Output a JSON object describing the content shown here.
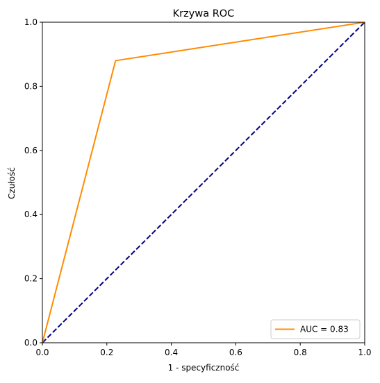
{
  "chart_data": {
    "type": "line",
    "title": "Krzywa ROC",
    "xlabel": "1 - specyficzność",
    "ylabel": "Czułość",
    "xlim": [
      0.0,
      1.0
    ],
    "ylim": [
      0.0,
      1.0
    ],
    "xticks": [
      0.0,
      0.2,
      0.4,
      0.6,
      0.8,
      1.0
    ],
    "yticks": [
      0.0,
      0.2,
      0.4,
      0.6,
      0.8,
      1.0
    ],
    "xtick_labels": [
      "0.0",
      "0.2",
      "0.4",
      "0.6",
      "0.8",
      "1.0"
    ],
    "ytick_labels": [
      "0.0",
      "0.2",
      "0.4",
      "0.6",
      "0.8",
      "1.0"
    ],
    "grid": false,
    "legend_position": "lower-right",
    "series": [
      {
        "name": "AUC = 0.83",
        "color": "#ff8c00",
        "style": "solid",
        "x": [
          0.0,
          0.227,
          1.0
        ],
        "y": [
          0.0,
          0.88,
          1.0
        ]
      },
      {
        "color": "#000080",
        "style": "dashed",
        "x": [
          0.0,
          1.0
        ],
        "y": [
          0.0,
          1.0
        ]
      }
    ]
  }
}
